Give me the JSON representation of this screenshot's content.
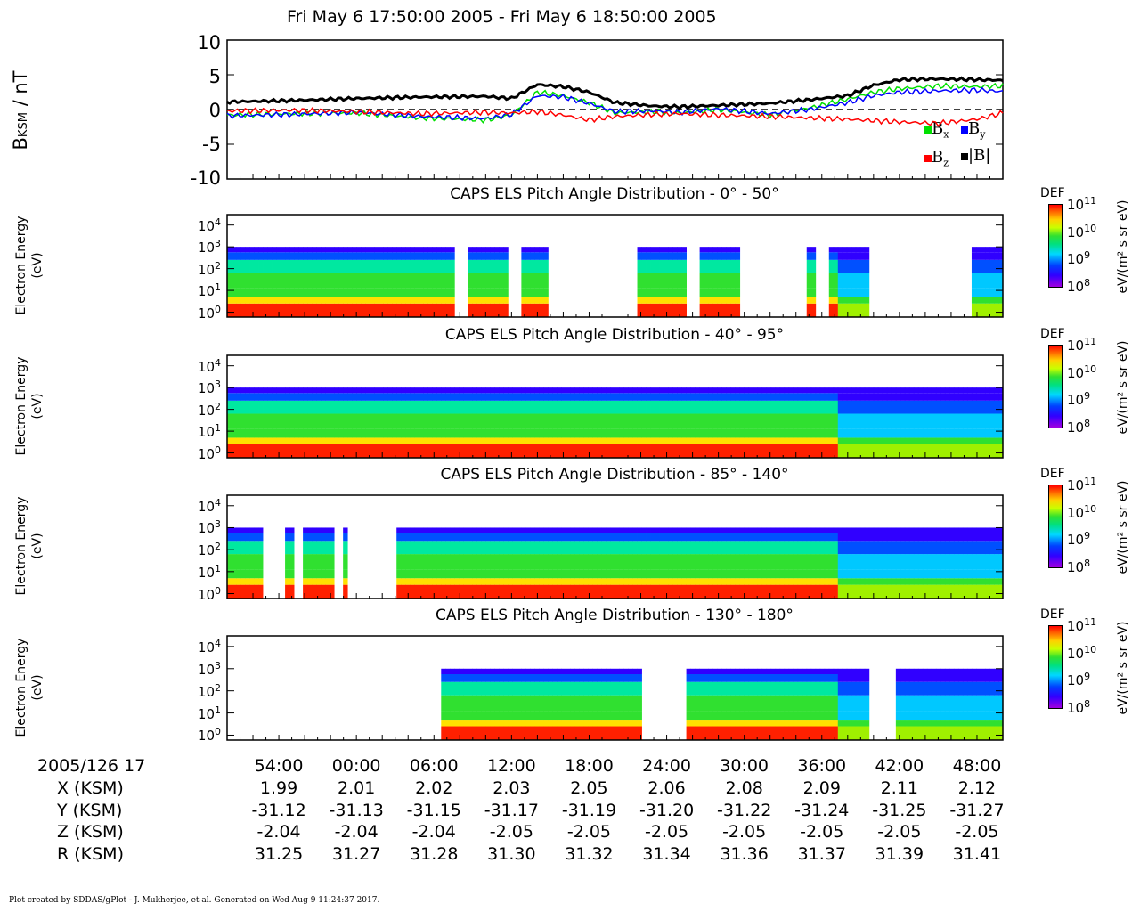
{
  "title": "Fri May 6 17:50:00 2005 - Fri May 6 18:50:00 2005",
  "mag_panel": {
    "ylabel_main": "B",
    "ylabel_sub": "KSM",
    "ylabel_unit": " / nT",
    "yticks": [
      "10",
      "5",
      "0",
      "-5",
      "-10"
    ],
    "legend": [
      {
        "label": "B",
        "sub": "x",
        "color": "#00e000"
      },
      {
        "label": "B",
        "sub": "y",
        "color": "#0000ff"
      },
      {
        "label": "B",
        "sub": "z",
        "color": "#ff0000"
      },
      {
        "label": "|B|",
        "sub": "",
        "color": "#000000"
      }
    ]
  },
  "spec_panels": [
    {
      "title": "CAPS ELS Pitch Angle Distribution - 0° - 50°"
    },
    {
      "title": "CAPS ELS Pitch Angle Distribution - 40° - 95°"
    },
    {
      "title": "CAPS ELS Pitch Angle Distribution - 85° - 140°"
    },
    {
      "title": "CAPS ELS Pitch Angle Distribution - 130° - 180°"
    }
  ],
  "spec_ylabel_line1": "Electron Energy",
  "spec_ylabel_line2": "(eV)",
  "colorbar": {
    "top_label": "DEF",
    "unit_label": "eV/(m² s sr eV)",
    "ticks": [
      {
        "base": "10",
        "exp": "11"
      },
      {
        "base": "10",
        "exp": "10"
      },
      {
        "base": "10",
        "exp": "9"
      },
      {
        "base": "10",
        "exp": "8"
      }
    ]
  },
  "energy_ticks": [
    {
      "base": "10",
      "exp": "4"
    },
    {
      "base": "10",
      "exp": "3"
    },
    {
      "base": "10",
      "exp": "2"
    },
    {
      "base": "10",
      "exp": "1"
    },
    {
      "base": "10",
      "exp": "0"
    }
  ],
  "ephemeris": {
    "date_label": "2005/126 17",
    "rows": [
      {
        "label": "X (KSM)",
        "values": [
          "1.99",
          "2.01",
          "2.02",
          "2.03",
          "2.05",
          "2.06",
          "2.08",
          "2.09",
          "2.11",
          "2.12"
        ]
      },
      {
        "label": "Y (KSM)",
        "values": [
          "-31.12",
          "-31.13",
          "-31.15",
          "-31.17",
          "-31.19",
          "-31.20",
          "-31.22",
          "-31.24",
          "-31.25",
          "-31.27"
        ]
      },
      {
        "label": "Z (KSM)",
        "values": [
          "-2.04",
          "-2.04",
          "-2.04",
          "-2.05",
          "-2.05",
          "-2.05",
          "-2.05",
          "-2.05",
          "-2.05",
          "-2.05"
        ]
      },
      {
        "label": "R (KSM)",
        "values": [
          "31.25",
          "31.27",
          "31.28",
          "31.30",
          "31.32",
          "31.34",
          "31.36",
          "31.37",
          "31.39",
          "31.41"
        ]
      }
    ]
  },
  "time_labels": [
    "54:00",
    "00:00",
    "06:00",
    "12:00",
    "18:00",
    "24:00",
    "30:00",
    "36:00",
    "42:00",
    "48:00"
  ],
  "footer": "Plot created by SDDAS/gPlot - J. Mukherjee, et al.  Generated on Wed Aug 9 11:24:37 2017.",
  "chart_data": [
    {
      "type": "line",
      "title": "",
      "ylabel": "B_KSM / nT",
      "ylim": [
        -10,
        10
      ],
      "x_unit": "minutes after 17:50",
      "x": [
        0,
        5,
        10,
        15,
        20,
        22,
        24,
        26,
        28,
        30,
        33,
        35,
        38,
        42,
        45,
        48,
        50,
        52,
        55,
        58,
        60
      ],
      "series": [
        {
          "name": "Bx",
          "color": "#00e000",
          "values": [
            -0.8,
            -0.6,
            -0.5,
            -1.2,
            -1.5,
            -0.8,
            2.5,
            2.0,
            1.0,
            -0.5,
            -0.3,
            -0.5,
            0.0,
            -0.8,
            0.2,
            1.5,
            2.5,
            3.0,
            3.4,
            3.3,
            3.4
          ]
        },
        {
          "name": "By",
          "color": "#0000ff",
          "values": [
            -0.9,
            -0.7,
            -0.4,
            -1.0,
            -1.3,
            -0.7,
            2.0,
            1.8,
            0.9,
            -0.3,
            -0.2,
            -0.4,
            0.1,
            -0.6,
            0.0,
            1.0,
            2.0,
            2.5,
            2.7,
            2.8,
            2.6
          ]
        },
        {
          "name": "Bz",
          "color": "#ff0000",
          "values": [
            -0.2,
            -0.1,
            -0.3,
            -0.6,
            -0.4,
            -0.5,
            -0.3,
            -0.8,
            -1.5,
            -1.0,
            -0.7,
            -0.6,
            -0.8,
            -1.0,
            -1.2,
            -1.4,
            -1.6,
            -1.8,
            -2.0,
            -1.4,
            -0.5
          ]
        },
        {
          "name": "|B|",
          "color": "#000000",
          "values": [
            1.1,
            1.3,
            1.6,
            1.8,
            1.9,
            1.6,
            3.6,
            3.3,
            2.5,
            1.0,
            0.5,
            0.4,
            0.6,
            0.9,
            1.4,
            2.0,
            3.5,
            4.3,
            4.4,
            4.3,
            4.2
          ]
        }
      ]
    },
    {
      "type": "heatmap",
      "title": "CAPS ELS Pitch Angle Distribution - 0° - 50°",
      "ylabel": "Electron Energy (eV)",
      "y_scale": "log",
      "ylim": [
        0.6,
        30000
      ],
      "colorbar_scale": "log",
      "clim": [
        100000000.0,
        100000000000.0
      ],
      "no_data_intervals_min": [
        [
          17.5,
          18.5
        ],
        [
          21.5,
          22.5
        ],
        [
          24.5,
          31.5
        ],
        [
          35.5,
          36.5
        ],
        [
          39.5,
          44.5
        ],
        [
          45.5,
          46.5
        ],
        [
          49.5,
          54.5
        ],
        [
          54.5,
          57.5
        ]
      ]
    },
    {
      "type": "heatmap",
      "title": "CAPS ELS Pitch Angle Distribution - 40° - 95°",
      "ylabel": "Electron Energy (eV)",
      "y_scale": "log",
      "ylim": [
        0.6,
        30000
      ],
      "colorbar_scale": "log",
      "clim": [
        100000000.0,
        100000000000.0
      ],
      "no_data_intervals_min": []
    },
    {
      "type": "heatmap",
      "title": "CAPS ELS Pitch Angle Distribution - 85° - 140°",
      "ylabel": "Electron Energy (eV)",
      "y_scale": "log",
      "ylim": [
        0.6,
        30000
      ],
      "colorbar_scale": "log",
      "clim": [
        100000000.0,
        100000000000.0
      ],
      "no_data_intervals_min": [
        [
          2.7,
          4.2
        ],
        [
          5.0,
          5.8
        ],
        [
          8.0,
          8.8
        ],
        [
          9.2,
          9.8
        ],
        [
          9.0,
          12.8
        ]
      ]
    },
    {
      "type": "heatmap",
      "title": "CAPS ELS Pitch Angle Distribution - 130° - 180°",
      "ylabel": "Electron Energy (eV)",
      "y_scale": "log",
      "ylim": [
        0.6,
        30000
      ],
      "colorbar_scale": "log",
      "clim": [
        100000000.0,
        100000000000.0
      ],
      "no_data_intervals_min": [
        [
          0,
          16.5
        ],
        [
          31.8,
          35.5
        ],
        [
          49.5,
          51.5
        ]
      ]
    }
  ]
}
